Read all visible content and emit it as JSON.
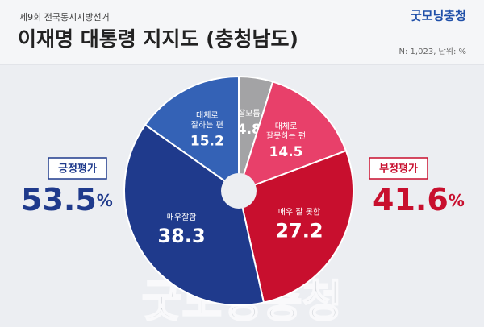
{
  "chart_data": {
    "type": "pie",
    "kicker": "제9회 전국동시지방선거",
    "title": "이재명 대통령 지지도 (충청남도)",
    "note": "N: 1,023, 단위: %",
    "logo": "굿모닝충청",
    "watermark": "굿모닝충청",
    "categories": [
      [
        "잘모름"
      ],
      [
        "대체로",
        "잘못하는 편"
      ],
      [
        "매우 잘 못함"
      ],
      [
        "매우잘함"
      ],
      [
        "대체로",
        "잘하는 편"
      ]
    ],
    "values": [
      4.8,
      14.5,
      27.2,
      38.3,
      15.2
    ],
    "colors": [
      "#a3a3a5",
      "#e8406a",
      "#c80f2e",
      "#1f3a8c",
      "#3462b6"
    ],
    "positive": {
      "label": "긍정평가",
      "value": 53.5,
      "unit": "%",
      "color": "#1f3a8c"
    },
    "negative": {
      "label": "부정평가",
      "value": 41.6,
      "unit": "%",
      "color": "#c80f2e"
    }
  }
}
